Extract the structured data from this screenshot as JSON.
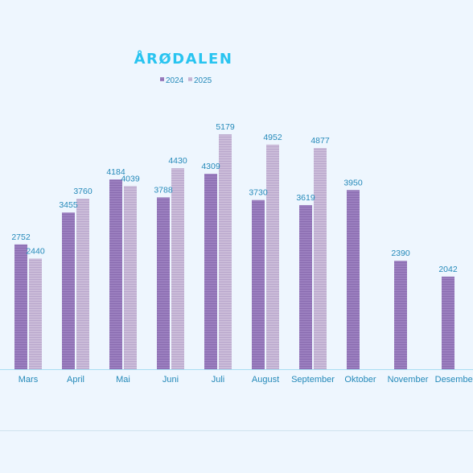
{
  "chart_data": {
    "type": "bar",
    "title": "ÅRØDALEN",
    "categories": [
      "Mars",
      "April",
      "Mai",
      "Juni",
      "Juli",
      "August",
      "September",
      "Oktober",
      "November",
      "Desember"
    ],
    "series": [
      {
        "name": "2024",
        "values": [
          2752,
          3455,
          4184,
          3788,
          4309,
          3730,
          3619,
          3950,
          2390,
          2042
        ]
      },
      {
        "name": "2025",
        "values": [
          2440,
          3760,
          4039,
          4430,
          5179,
          4952,
          4877,
          null,
          null,
          null
        ]
      }
    ],
    "ylim": [
      0,
      5179
    ],
    "grid": false,
    "legend_position": "top",
    "data_labels": true
  },
  "colors": {
    "background": "#eef6fe",
    "series_2024": "#9b7fbf",
    "series_2025": "#cbbcd9",
    "title": "#29c4f0",
    "labels": "#2489b9",
    "axis": "#a8def3"
  }
}
